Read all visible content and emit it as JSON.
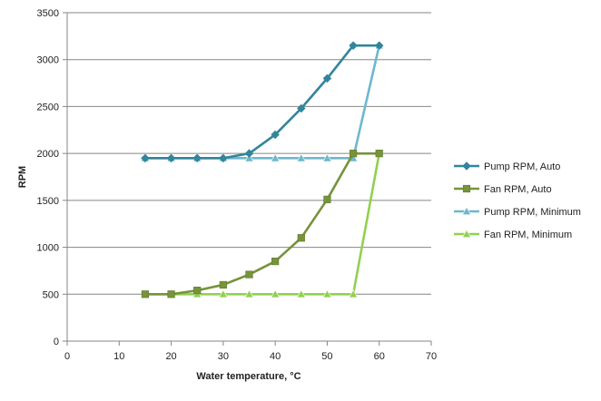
{
  "chart_data": {
    "type": "line",
    "title": "",
    "xlabel": "Water temperature, °C",
    "ylabel": "RPM",
    "xlim": [
      0,
      70
    ],
    "ylim": [
      0,
      3500
    ],
    "x_ticks": [
      0,
      10,
      20,
      30,
      40,
      50,
      60,
      70
    ],
    "y_ticks": [
      0,
      500,
      1000,
      1500,
      2000,
      2500,
      3000,
      3500
    ],
    "grid": "horizontal",
    "legend_position": "right",
    "series": [
      {
        "name": "Pump RPM, Auto",
        "color": "#31859C",
        "marker": "diamond",
        "x": [
          15,
          20,
          25,
          30,
          35,
          40,
          45,
          50,
          55,
          60
        ],
        "values": [
          1950,
          1950,
          1950,
          1950,
          2000,
          2200,
          2480,
          2800,
          3150,
          3150
        ]
      },
      {
        "name": "Fan RPM, Auto",
        "color": "#77933C",
        "marker": "square",
        "x": [
          15,
          20,
          25,
          30,
          35,
          40,
          45,
          50,
          55,
          60
        ],
        "values": [
          500,
          500,
          540,
          600,
          710,
          850,
          1100,
          1510,
          2000,
          2000
        ]
      },
      {
        "name": "Pump RPM, Minimum",
        "color": "#6FB7CF",
        "marker": "triangle",
        "x": [
          15,
          20,
          25,
          30,
          35,
          40,
          45,
          50,
          55,
          60
        ],
        "values": [
          1950,
          1950,
          1950,
          1950,
          1950,
          1950,
          1950,
          1950,
          1950,
          3150
        ]
      },
      {
        "name": "Fan RPM, Minimum",
        "color": "#92D050",
        "marker": "triangle",
        "x": [
          15,
          20,
          25,
          30,
          35,
          40,
          45,
          50,
          55,
          60
        ],
        "values": [
          500,
          500,
          500,
          500,
          500,
          500,
          500,
          500,
          500,
          2000
        ]
      }
    ]
  }
}
